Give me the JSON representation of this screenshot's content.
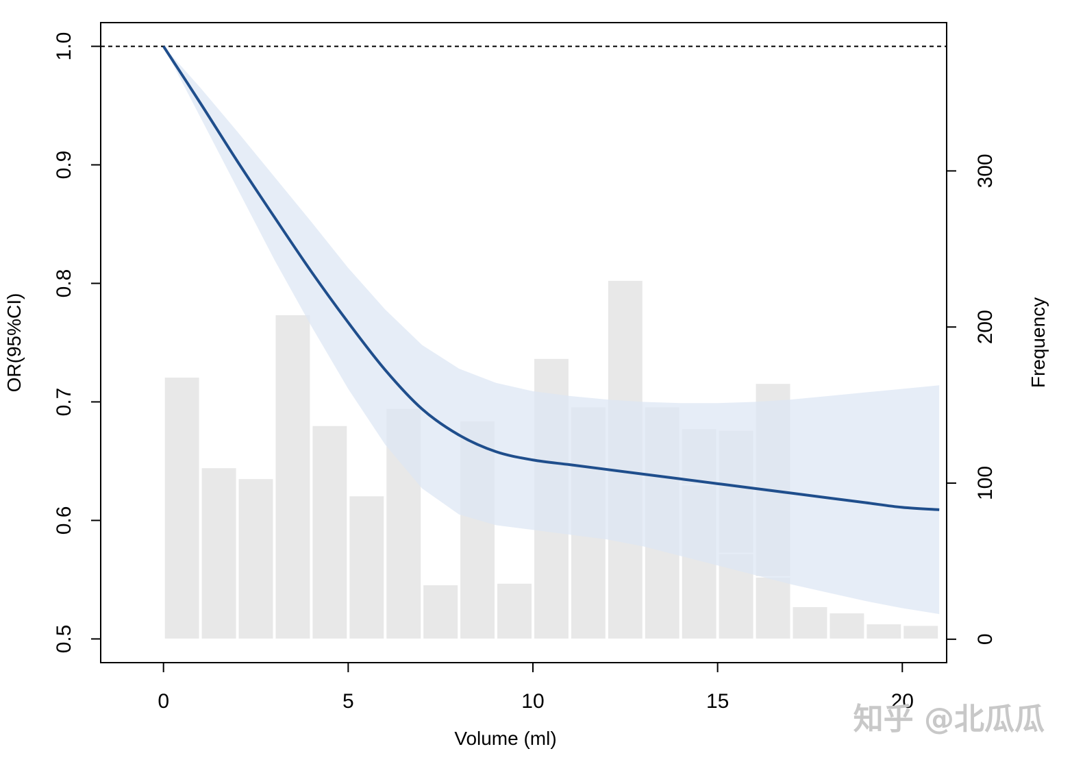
{
  "chart_data": {
    "type": "line",
    "title": "",
    "xlabel": "Volume (ml)",
    "ylabel": "OR(95%CI)",
    "y2label": "Frequency",
    "xlim": [
      -1.7,
      21.2
    ],
    "ylim": [
      0.48,
      1.02
    ],
    "y2lim": [
      -15,
      395
    ],
    "x_ticks": [
      0,
      5,
      10,
      15,
      20
    ],
    "x_tick_labels": [
      "0",
      "5",
      "10",
      "15",
      "20"
    ],
    "y_ticks": [
      0.5,
      0.6,
      0.7,
      0.8,
      0.9,
      1.0
    ],
    "y_tick_labels": [
      "0.5",
      "0.6",
      "0.7",
      "0.8",
      "0.9",
      "1.0"
    ],
    "y2_ticks": [
      0,
      100,
      200,
      300
    ],
    "y2_tick_labels": [
      "0",
      "100",
      "200",
      "300"
    ],
    "reference_line": {
      "y": 1.0,
      "style": "dashed"
    },
    "curve": {
      "name": "OR",
      "color": "#1f4e8c",
      "x": [
        0,
        1,
        2,
        3,
        4,
        5,
        6,
        7,
        8,
        9,
        10,
        11,
        12,
        13,
        14,
        15,
        16,
        17,
        18,
        19,
        20,
        21
      ],
      "y": [
        1.0,
        0.952,
        0.903,
        0.856,
        0.81,
        0.767,
        0.727,
        0.694,
        0.672,
        0.658,
        0.651,
        0.647,
        0.643,
        0.639,
        0.635,
        0.631,
        0.627,
        0.623,
        0.619,
        0.615,
        0.611,
        0.609
      ]
    },
    "ci_band": {
      "name": "95% CI",
      "color": "#dce6f4",
      "x": [
        0,
        1,
        2,
        3,
        4,
        5,
        6,
        7,
        8,
        9,
        10,
        11,
        12,
        13,
        14,
        15,
        16,
        17,
        18,
        19,
        20,
        21
      ],
      "lower": [
        1.0,
        0.94,
        0.88,
        0.82,
        0.764,
        0.711,
        0.664,
        0.627,
        0.605,
        0.596,
        0.592,
        0.588,
        0.584,
        0.578,
        0.57,
        0.562,
        0.554,
        0.546,
        0.539,
        0.532,
        0.526,
        0.521
      ],
      "upper": [
        1.0,
        0.965,
        0.928,
        0.89,
        0.852,
        0.813,
        0.778,
        0.748,
        0.728,
        0.716,
        0.709,
        0.705,
        0.702,
        0.7,
        0.699,
        0.699,
        0.7,
        0.702,
        0.705,
        0.708,
        0.711,
        0.714
      ]
    },
    "histogram": {
      "name": "Frequency",
      "color": "#e8e8e8",
      "bin_width": 1,
      "bin_starts": [
        0,
        1,
        2,
        3,
        4,
        5,
        6,
        7,
        8,
        9,
        10,
        11,
        12,
        13,
        14,
        15,
        16,
        17,
        18,
        19,
        20
      ],
      "counts": [
        168,
        110,
        103,
        208,
        137,
        92,
        148,
        35,
        140,
        36,
        180,
        149,
        230,
        149,
        135,
        134,
        164,
        21,
        17,
        10,
        9
      ],
      "overlay_counts": [
        null,
        null,
        null,
        null,
        null,
        null,
        null,
        null,
        null,
        null,
        null,
        null,
        null,
        null,
        99,
        55,
        40,
        null,
        null,
        null,
        null
      ]
    }
  },
  "watermark": {
    "text": "知乎 @北瓜瓜"
  }
}
